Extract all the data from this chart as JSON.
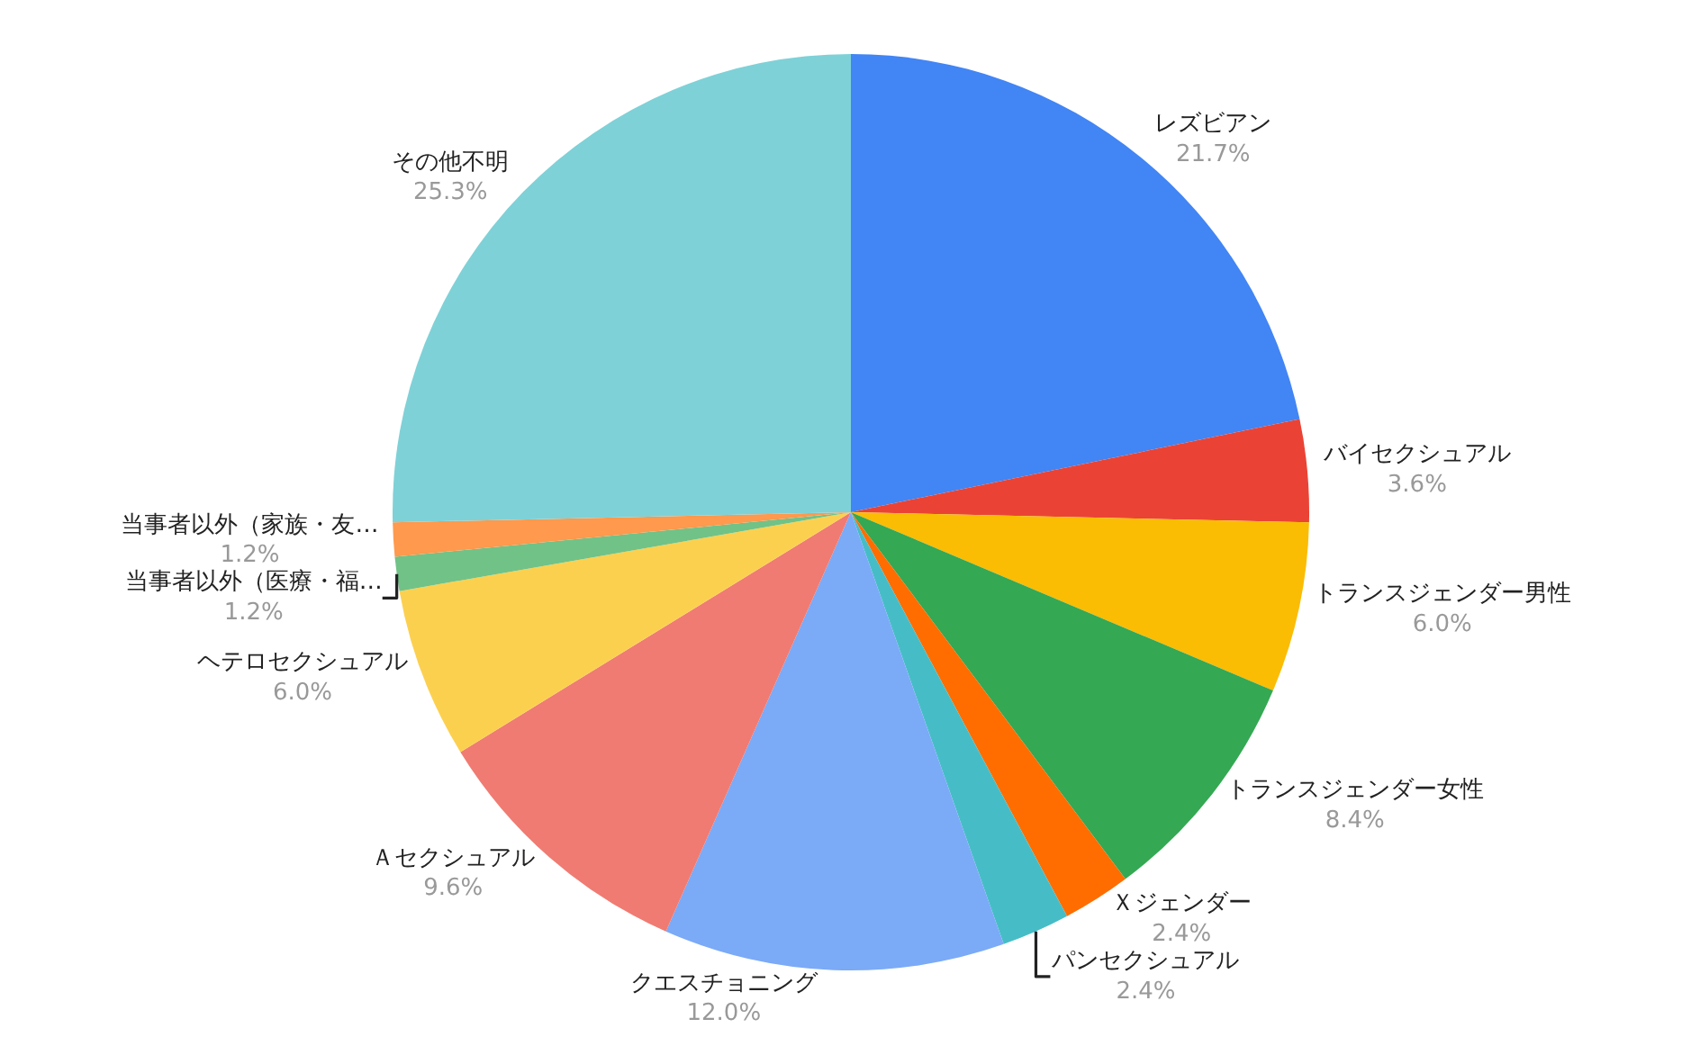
{
  "chart_data": {
    "type": "pie",
    "categories": [
      "レズビアン",
      "バイセクシュアル",
      "トランスジェンダー男性",
      "トランスジェンダー女性",
      "Ｘジェンダー",
      "パンセクシュアル",
      "クエスチョニング",
      "Ａセクシュアル",
      "ヘテロセクシュアル",
      "当事者以外（医療・福…",
      "当事者以外（家族・友…",
      "その他不明"
    ],
    "values": [
      21.7,
      3.6,
      6.0,
      8.4,
      2.4,
      2.4,
      12.0,
      9.6,
      6.0,
      1.2,
      1.2,
      25.3
    ],
    "value_labels": [
      "21.7%",
      "3.6%",
      "6.0%",
      "8.4%",
      "2.4%",
      "2.4%",
      "12.0%",
      "9.6%",
      "6.0%",
      "1.2%",
      "1.2%",
      "25.3%"
    ],
    "colors": [
      "#4285f4",
      "#ea4335",
      "#fbbc04",
      "#34a853",
      "#ff6d01",
      "#46bdc6",
      "#7baaf7",
      "#f07b72",
      "#fcd04f",
      "#71c287",
      "#ff994d",
      "#7ed1d7"
    ],
    "legend": false
  }
}
